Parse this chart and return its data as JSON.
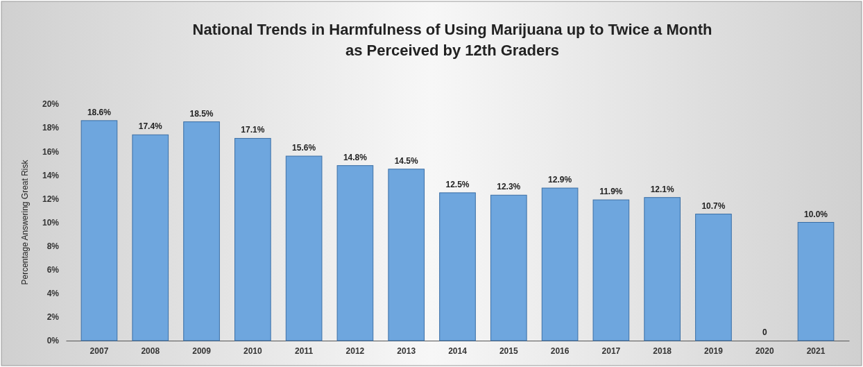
{
  "chart_data": {
    "type": "bar",
    "title": "National Trends in Harmfulness of Using Marijuana up to Twice a Month\nas Perceived by 12th Graders",
    "ylabel": "Percentage Answering Great Risk",
    "categories": [
      "2007",
      "2008",
      "2009",
      "2010",
      "2011",
      "2012",
      "2013",
      "2014",
      "2015",
      "2016",
      "2017",
      "2018",
      "2019",
      "2020",
      "2021"
    ],
    "values": [
      18.6,
      17.4,
      18.5,
      17.1,
      15.6,
      14.8,
      14.5,
      12.5,
      12.3,
      12.9,
      11.9,
      12.1,
      10.7,
      0,
      10.0
    ],
    "value_labels": [
      "18.6%",
      "17.4%",
      "18.5%",
      "17.1%",
      "15.6%",
      "14.8%",
      "14.5%",
      "12.5%",
      "12.3%",
      "12.9%",
      "11.9%",
      "12.1%",
      "10.7%",
      "0",
      "10.0%"
    ],
    "color": "#6ea6de",
    "ylim": [
      0,
      20
    ],
    "yticks": [
      {
        "value": 0,
        "label": "0%"
      },
      {
        "value": 2,
        "label": "2%"
      },
      {
        "value": 4,
        "label": "4%"
      },
      {
        "value": 6,
        "label": "6%"
      },
      {
        "value": 8,
        "label": "8%"
      },
      {
        "value": 10,
        "label": "10%"
      },
      {
        "value": 12,
        "label": "12%"
      },
      {
        "value": 14,
        "label": "14%"
      },
      {
        "value": 16,
        "label": "16%"
      },
      {
        "value": 18,
        "label": "18%"
      },
      {
        "value": 20,
        "label": "20%"
      }
    ]
  }
}
